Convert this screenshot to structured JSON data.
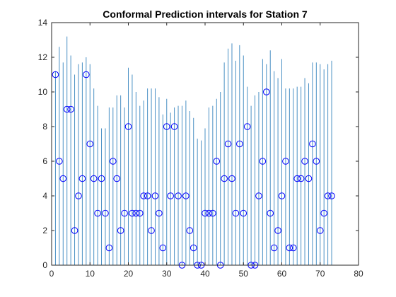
{
  "chart_data": {
    "type": "scatter",
    "title": "Conformal Prediction intervals for Station 7",
    "xlabel": "",
    "ylabel": "",
    "xlim": [
      0,
      80
    ],
    "ylim": [
      0,
      14
    ],
    "xticks": [
      "0",
      "10",
      "20",
      "30",
      "40",
      "50",
      "60",
      "70",
      "80"
    ],
    "yticks": [
      "0",
      "2",
      "4",
      "6",
      "8",
      "10",
      "12",
      "14"
    ],
    "grid": false,
    "colors": {
      "interval": "#4a90c4",
      "point": "#0000ff",
      "axes": "#262626"
    },
    "series": [
      {
        "type": "errorbar",
        "x": [
          1,
          2,
          3,
          4,
          5,
          6,
          7,
          8,
          9,
          10,
          11,
          12,
          13,
          14,
          15,
          16,
          17,
          18,
          19,
          20,
          21,
          22,
          23,
          24,
          25,
          26,
          27,
          28,
          29,
          30,
          31,
          32,
          33,
          34,
          35,
          36,
          37,
          38,
          39,
          40,
          41,
          42,
          43,
          44,
          45,
          46,
          47,
          48,
          49,
          50,
          51,
          52,
          53,
          54,
          55,
          56,
          57,
          58,
          59,
          60,
          61,
          62,
          63,
          64,
          65,
          66,
          67,
          68,
          69,
          70,
          71,
          72,
          73
        ],
        "lower": [
          0,
          0,
          0,
          0,
          0,
          0,
          0,
          0,
          0,
          0,
          0,
          0,
          0,
          0,
          0,
          0,
          0,
          0,
          0,
          0,
          0,
          0,
          0,
          0,
          0,
          0,
          0,
          0,
          0,
          0,
          0,
          0,
          0,
          0,
          0,
          0,
          0,
          0,
          0,
          0,
          0,
          0,
          0,
          0,
          0,
          0,
          0,
          0,
          0,
          0,
          0,
          0,
          0,
          0,
          0,
          0,
          0,
          0,
          0,
          0,
          0,
          0,
          0,
          0,
          0,
          0,
          0,
          0,
          0,
          0,
          0,
          0,
          0
        ],
        "upper": [
          11.2,
          12.6,
          11.7,
          13.2,
          12.1,
          11.0,
          11.6,
          11.7,
          12.0,
          11.6,
          10.2,
          9.2,
          7.9,
          7.9,
          9.1,
          9.1,
          9.8,
          9.8,
          9.1,
          11.4,
          11.0,
          10.0,
          9.2,
          9.5,
          10.2,
          10.2,
          10.2,
          9.7,
          8.7,
          9.6,
          8.8,
          9.1,
          9.2,
          9.2,
          9.5,
          8.9,
          8.5,
          7.3,
          7.2,
          7.9,
          9.1,
          9.2,
          9.6,
          10.0,
          11.7,
          12.5,
          12.8,
          11.8,
          12.7,
          12.1,
          10.3,
          9.2,
          9.8,
          10.0,
          11.9,
          11.6,
          12.4,
          11.2,
          10.8,
          11.9,
          10.2,
          10.2,
          10.2,
          10.3,
          10.3,
          10.8,
          10.5,
          11.7,
          11.7,
          11.6,
          11.3,
          11.6,
          11.8
        ]
      },
      {
        "type": "points",
        "x": [
          1,
          2,
          3,
          4,
          5,
          6,
          7,
          8,
          9,
          10,
          11,
          12,
          13,
          14,
          15,
          16,
          17,
          18,
          19,
          20,
          21,
          22,
          23,
          24,
          25,
          26,
          27,
          28,
          29,
          30,
          31,
          32,
          33,
          34,
          35,
          36,
          37,
          38,
          39,
          40,
          41,
          42,
          43,
          44,
          45,
          46,
          47,
          48,
          49,
          50,
          51,
          52,
          53,
          54,
          55,
          56,
          57,
          58,
          59,
          60,
          61,
          62,
          63,
          64,
          65,
          66,
          67,
          68,
          69,
          70,
          71,
          72,
          73
        ],
        "values": [
          11,
          6,
          5,
          9,
          9,
          2,
          4,
          5,
          11,
          7,
          5,
          3,
          5,
          3,
          1,
          6,
          5,
          2,
          3,
          8,
          3,
          3,
          3,
          4,
          4,
          2,
          4,
          3,
          1,
          8,
          4,
          8,
          4,
          0,
          4,
          2,
          1,
          0,
          0,
          3,
          3,
          3,
          6,
          0,
          5,
          7,
          5,
          3,
          7,
          3,
          8,
          0,
          0,
          4,
          6,
          10,
          3,
          1,
          2,
          4,
          6,
          1,
          1,
          5,
          5,
          6,
          5,
          7,
          6,
          2,
          3,
          4,
          4
        ]
      }
    ]
  }
}
